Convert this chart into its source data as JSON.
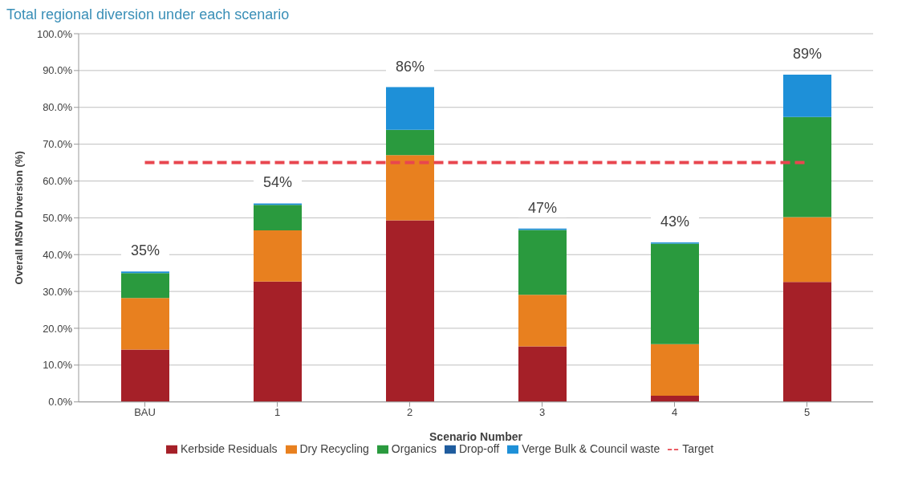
{
  "chart_data": {
    "type": "bar",
    "title": "Total regional diversion under each scenario",
    "xlabel": "Scenario Number",
    "ylabel": "Overall MSW Diversion (%)",
    "categories": [
      "BAU",
      "1",
      "2",
      "3",
      "4",
      "5"
    ],
    "stacked": true,
    "series": [
      {
        "name": "Kerbside Residuals",
        "color": "#a52028",
        "values": [
          14.2,
          32.7,
          49.3,
          15.1,
          1.7,
          32.6
        ]
      },
      {
        "name": "Dry Recycling",
        "color": "#e8801f",
        "values": [
          14.0,
          13.9,
          17.7,
          14.0,
          14.0,
          17.6
        ]
      },
      {
        "name": "Organics",
        "color": "#2a9a3e",
        "values": [
          6.8,
          6.9,
          6.9,
          17.6,
          27.3,
          27.2
        ]
      },
      {
        "name": "Drop-off",
        "color": "#1f5c9e",
        "values": [
          0,
          0,
          0,
          0,
          0,
          0
        ]
      },
      {
        "name": "Verge Bulk & Council waste",
        "color": "#1e90d8",
        "values": [
          0.4,
          0.4,
          11.6,
          0.4,
          0.3,
          11.5
        ]
      },
      {
        "name": "Target",
        "type": "line",
        "color": "#e8464f",
        "line_style": "dashed",
        "marker": "none",
        "values": [
          65,
          65,
          65,
          65,
          65,
          65
        ]
      }
    ],
    "totals": [
      "35%",
      "54%",
      "86%",
      "47%",
      "43%",
      "89%"
    ],
    "ylim": [
      0,
      100
    ],
    "yticks": [
      {
        "value": 0,
        "label": "0.0%"
      },
      {
        "value": 10,
        "label": "10.0%"
      },
      {
        "value": 20,
        "label": "20.0%"
      },
      {
        "value": 30,
        "label": "30.0%"
      },
      {
        "value": 40,
        "label": "40.0%"
      },
      {
        "value": 50,
        "label": "50.0%"
      },
      {
        "value": 60,
        "label": "60.0%"
      },
      {
        "value": 70,
        "label": "70.0%"
      },
      {
        "value": 80,
        "label": "80.0%"
      },
      {
        "value": 90,
        "label": "90.0%"
      },
      {
        "value": 100,
        "label": "100.0%"
      }
    ],
    "grid": "y",
    "legend": "bottom"
  }
}
